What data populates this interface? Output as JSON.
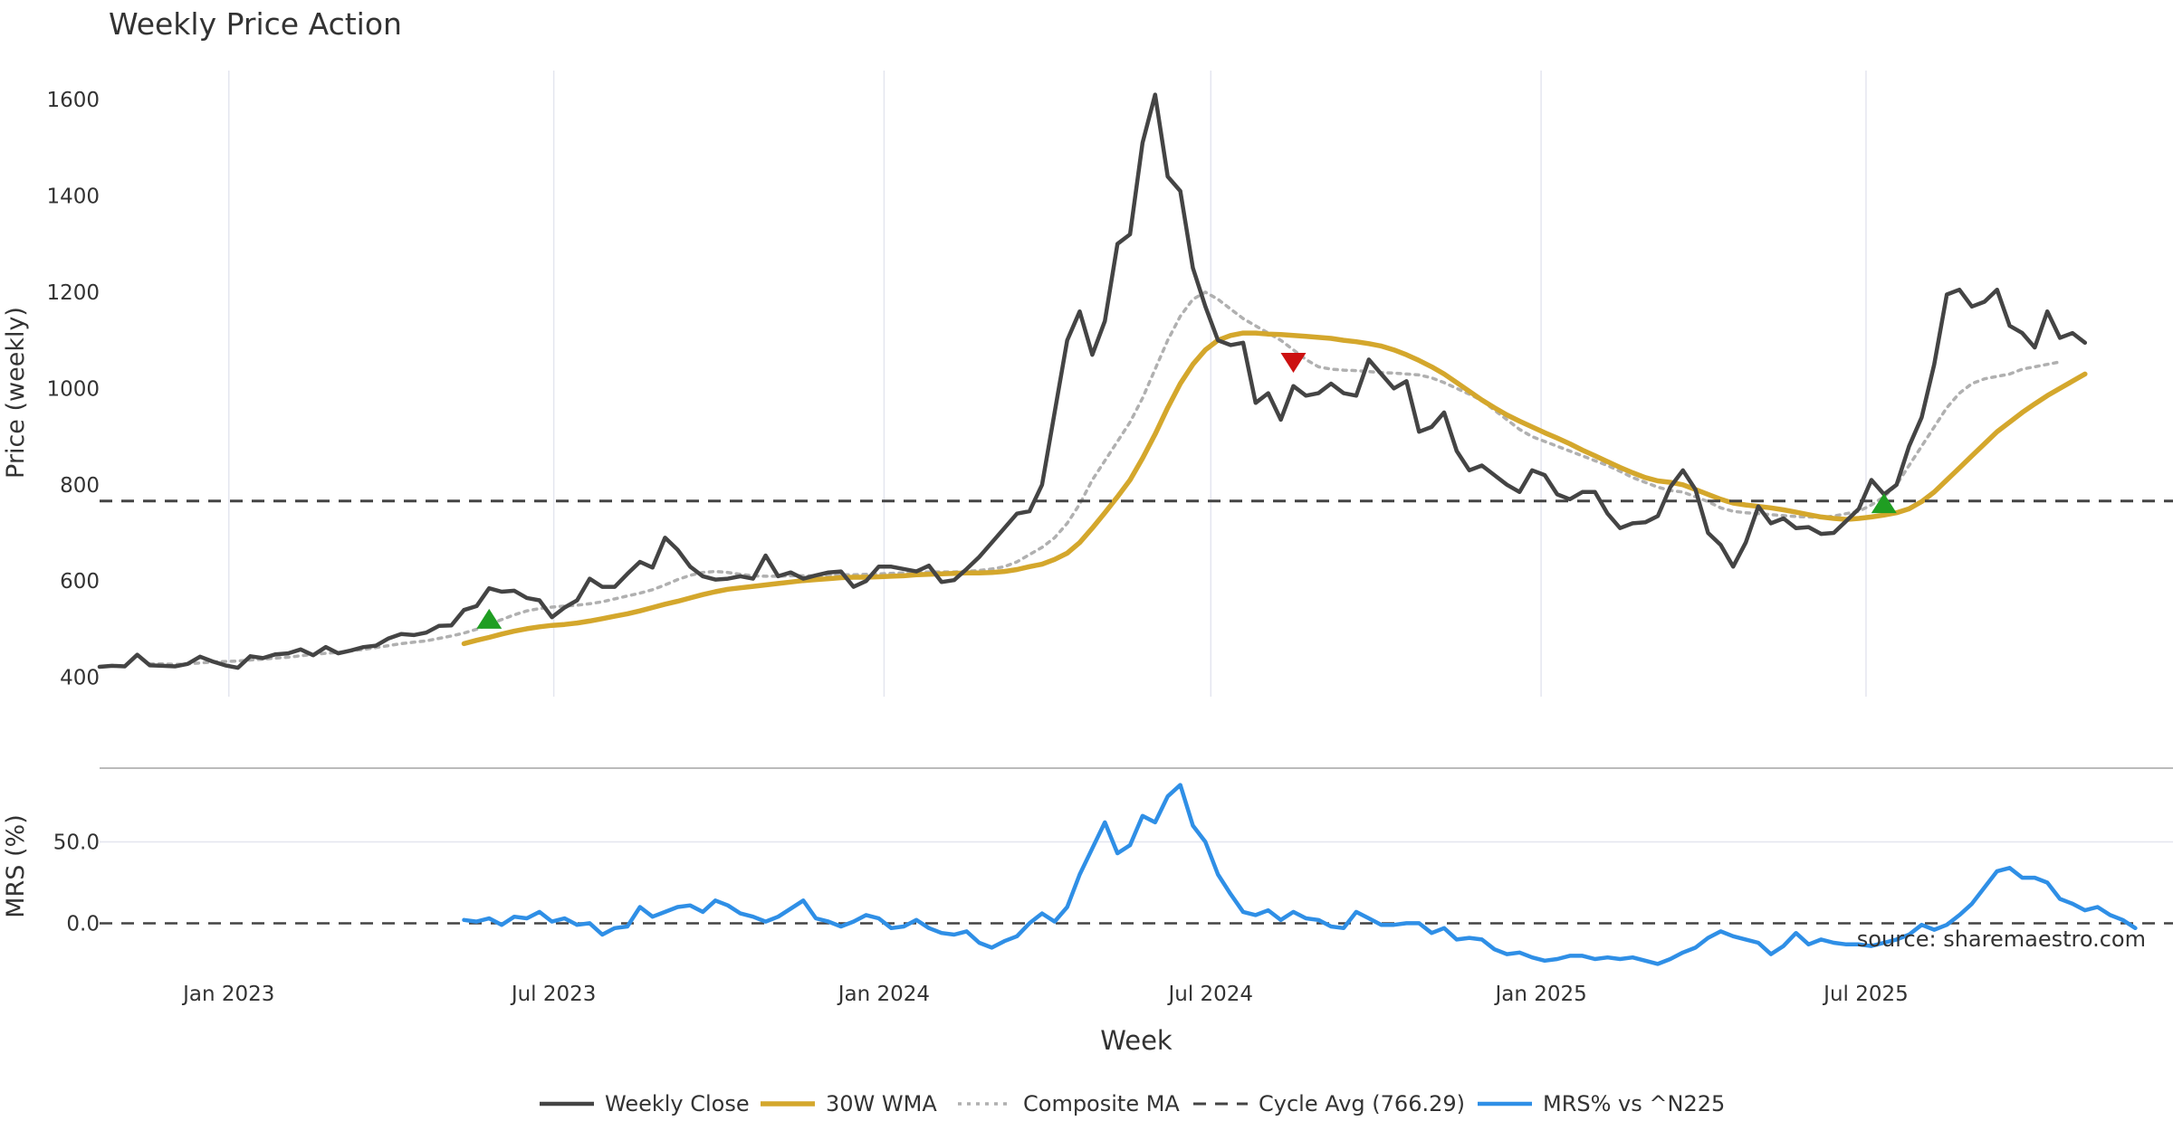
{
  "title": "Weekly Price Action",
  "source": "source: sharemaestro.com",
  "colors": {
    "close": "#444444",
    "wma": "#d4a72c",
    "composite": "#b0b0b0",
    "cycle": "#444444",
    "mrs": "#2f8fe6",
    "buy": "#1f9e22",
    "sell": "#cc1111",
    "grid": "#e4e6ef",
    "separator": "#bbbbbb"
  },
  "chart_data": [
    {
      "type": "line",
      "panel": "price",
      "title": "Weekly Price Action",
      "xlabel": "Week",
      "ylabel": "Price (weekly)",
      "x_start": "2022-10-21",
      "x_step_days": 7,
      "xlim": [
        "2022-10-21",
        "2025-12-19"
      ],
      "ylim": [
        360,
        1660
      ],
      "yticks": [
        400,
        600,
        800,
        1000,
        1200,
        1400,
        1600
      ],
      "xticks": [
        {
          "label": "Jan 2023",
          "date": "2023-01-01"
        },
        {
          "label": "Jul 2023",
          "date": "2023-07-01"
        },
        {
          "label": "Jan 2024",
          "date": "2024-01-01"
        },
        {
          "label": "Jul 2024",
          "date": "2024-07-01"
        },
        {
          "label": "Jan 2025",
          "date": "2025-01-01"
        },
        {
          "label": "Jul 2025",
          "date": "2025-07-01"
        }
      ],
      "series": [
        {
          "name": "Weekly Close",
          "key": "close",
          "start_index": 0,
          "values": [
            422,
            424,
            423,
            447,
            425,
            424,
            423,
            428,
            443,
            433,
            425,
            420,
            444,
            440,
            448,
            450,
            458,
            446,
            463,
            450,
            456,
            463,
            466,
            481,
            490,
            488,
            493,
            507,
            508,
            540,
            548,
            585,
            578,
            580,
            565,
            560,
            525,
            545,
            560,
            605,
            588,
            588,
            615,
            640,
            628,
            690,
            665,
            630,
            610,
            603,
            605,
            610,
            605,
            653,
            610,
            618,
            605,
            612,
            618,
            620,
            588,
            600,
            630,
            630,
            625,
            620,
            632,
            598,
            602,
            625,
            650,
            680,
            710,
            740,
            745,
            800,
            950,
            1100,
            1160,
            1070,
            1140,
            1300,
            1320,
            1510,
            1610,
            1440,
            1410,
            1250,
            1170,
            1100,
            1090,
            1095,
            970,
            990,
            935,
            1005,
            985,
            990,
            1010,
            990,
            985,
            1060,
            1030,
            1000,
            1015,
            910,
            920,
            950,
            870,
            830,
            840,
            820,
            800,
            785,
            830,
            820,
            780,
            770,
            785,
            785,
            740,
            710,
            720,
            722,
            735,
            795,
            830,
            790,
            700,
            675,
            630,
            680,
            755,
            720,
            730,
            710,
            712,
            698,
            700,
            725,
            750,
            810,
            780,
            800,
            880,
            940,
            1050,
            1195,
            1205,
            1170,
            1180,
            1205,
            1130,
            1115,
            1085,
            1160,
            1105,
            1115,
            1095
          ]
        },
        {
          "name": "30W WMA",
          "key": "wma",
          "start_index": 29,
          "values": [
            470,
            477,
            483,
            490,
            496,
            501,
            505,
            508,
            510,
            513,
            517,
            522,
            527,
            532,
            538,
            545,
            552,
            558,
            565,
            572,
            578,
            583,
            586,
            589,
            592,
            595,
            598,
            601,
            603,
            605,
            607,
            608,
            608,
            609,
            610,
            611,
            613,
            614,
            615,
            616,
            617,
            617,
            618,
            620,
            624,
            630,
            635,
            645,
            658,
            680,
            710,
            742,
            775,
            810,
            855,
            905,
            960,
            1010,
            1050,
            1080,
            1100,
            1110,
            1115,
            1115,
            1113,
            1112,
            1110,
            1108,
            1106,
            1104,
            1100,
            1097,
            1093,
            1088,
            1080,
            1070,
            1058,
            1045,
            1030,
            1012,
            994,
            976,
            960,
            945,
            932,
            920,
            908,
            897,
            885,
            872,
            860,
            848,
            836,
            825,
            815,
            808,
            805,
            800,
            790,
            780,
            770,
            762,
            758,
            755,
            752,
            748,
            743,
            738,
            733,
            730,
            728,
            730,
            733,
            737,
            742,
            750,
            765,
            785,
            810,
            835,
            860,
            885,
            910,
            930,
            950,
            968,
            985,
            1000,
            1015,
            1030
          ]
        },
        {
          "name": "Composite MA",
          "key": "composite",
          "start_index": 4,
          "values": [
            428,
            428,
            427,
            428,
            430,
            432,
            433,
            434,
            436,
            438,
            440,
            442,
            445,
            448,
            450,
            452,
            455,
            458,
            462,
            466,
            470,
            473,
            476,
            481,
            486,
            492,
            500,
            510,
            520,
            530,
            538,
            543,
            546,
            548,
            550,
            553,
            557,
            563,
            569,
            575,
            582,
            592,
            603,
            612,
            618,
            620,
            618,
            614,
            611,
            610,
            610,
            611,
            611,
            611,
            612,
            613,
            613,
            614,
            615,
            616,
            617,
            618,
            619,
            619,
            619,
            620,
            622,
            625,
            630,
            640,
            655,
            670,
            690,
            720,
            760,
            810,
            850,
            890,
            930,
            980,
            1040,
            1100,
            1150,
            1185,
            1200,
            1185,
            1165,
            1145,
            1130,
            1115,
            1100,
            1080,
            1060,
            1045,
            1040,
            1038,
            1037,
            1035,
            1033,
            1032,
            1030,
            1028,
            1022,
            1012,
            1000,
            988,
            975,
            955,
            935,
            915,
            900,
            890,
            880,
            870,
            860,
            850,
            840,
            828,
            815,
            805,
            795,
            788,
            785,
            775,
            765,
            752,
            745,
            742,
            740,
            738,
            736,
            734,
            733,
            732,
            735,
            740,
            745,
            758,
            775,
            800,
            840,
            880,
            920,
            960,
            990,
            1010,
            1020,
            1025,
            1030,
            1040,
            1045,
            1050,
            1055
          ]
        },
        {
          "name": "Cycle Avg (766.29)",
          "key": "cycle",
          "constant": 766.29
        }
      ],
      "signals": [
        {
          "type": "buy",
          "date": "2023-05-26",
          "value": 520
        },
        {
          "type": "sell",
          "date": "2024-08-16",
          "value": 1055
        },
        {
          "type": "buy",
          "date": "2025-07-11",
          "value": 760
        }
      ]
    },
    {
      "type": "line",
      "panel": "mrs",
      "xlabel": "Week",
      "ylabel": "MRS (%)",
      "xlim": [
        "2022-10-21",
        "2025-12-19"
      ],
      "ylim": [
        -22,
        92
      ],
      "yticks": [
        0,
        50
      ],
      "ytick_labels": [
        "0.0",
        "50.0"
      ],
      "zero_line": 0,
      "series": [
        {
          "name": "MRS% vs ^N225",
          "key": "mrs",
          "start_index": 29,
          "values": [
            2,
            1,
            3,
            -1,
            4,
            3,
            7,
            1,
            3,
            -1,
            0,
            -7,
            -3,
            -2,
            10,
            4,
            7,
            10,
            11,
            7,
            14,
            11,
            6,
            4,
            1,
            4,
            9,
            14,
            3,
            1,
            -2,
            1,
            5,
            3,
            -3,
            -2,
            2,
            -3,
            -6,
            -7,
            -5,
            -12,
            -15,
            -11,
            -8,
            0,
            6,
            1,
            10,
            30,
            46,
            62,
            43,
            48,
            66,
            62,
            78,
            85,
            60,
            50,
            30,
            18,
            7,
            5,
            8,
            2,
            7,
            3,
            2,
            -2,
            -3,
            7,
            3,
            -1,
            -1,
            0,
            0,
            -6,
            -3,
            -10,
            -9,
            -10,
            -16,
            -19,
            -18,
            -21,
            -23,
            -22,
            -20,
            -20,
            -22,
            -21,
            -22,
            -21,
            -23,
            -25,
            -22,
            -18,
            -15,
            -9,
            -5,
            -8,
            -10,
            -12,
            -19,
            -14,
            -6,
            -13,
            -10,
            -12,
            -13,
            -13,
            -14,
            -12,
            -10,
            -7,
            -1,
            -4,
            -1,
            5,
            12,
            22,
            32,
            34,
            28,
            28,
            25,
            15,
            12,
            8,
            10,
            5,
            2,
            -3
          ]
        }
      ]
    }
  ],
  "legend": [
    {
      "label": "Weekly Close",
      "key": "close",
      "style": "solid"
    },
    {
      "label": "30W WMA",
      "key": "wma",
      "style": "solid"
    },
    {
      "label": "Composite MA",
      "key": "composite",
      "style": "dotted"
    },
    {
      "label": "Cycle Avg (766.29)",
      "key": "cycle",
      "style": "dashed"
    },
    {
      "label": "MRS% vs ^N225",
      "key": "mrs",
      "style": "solid"
    }
  ]
}
